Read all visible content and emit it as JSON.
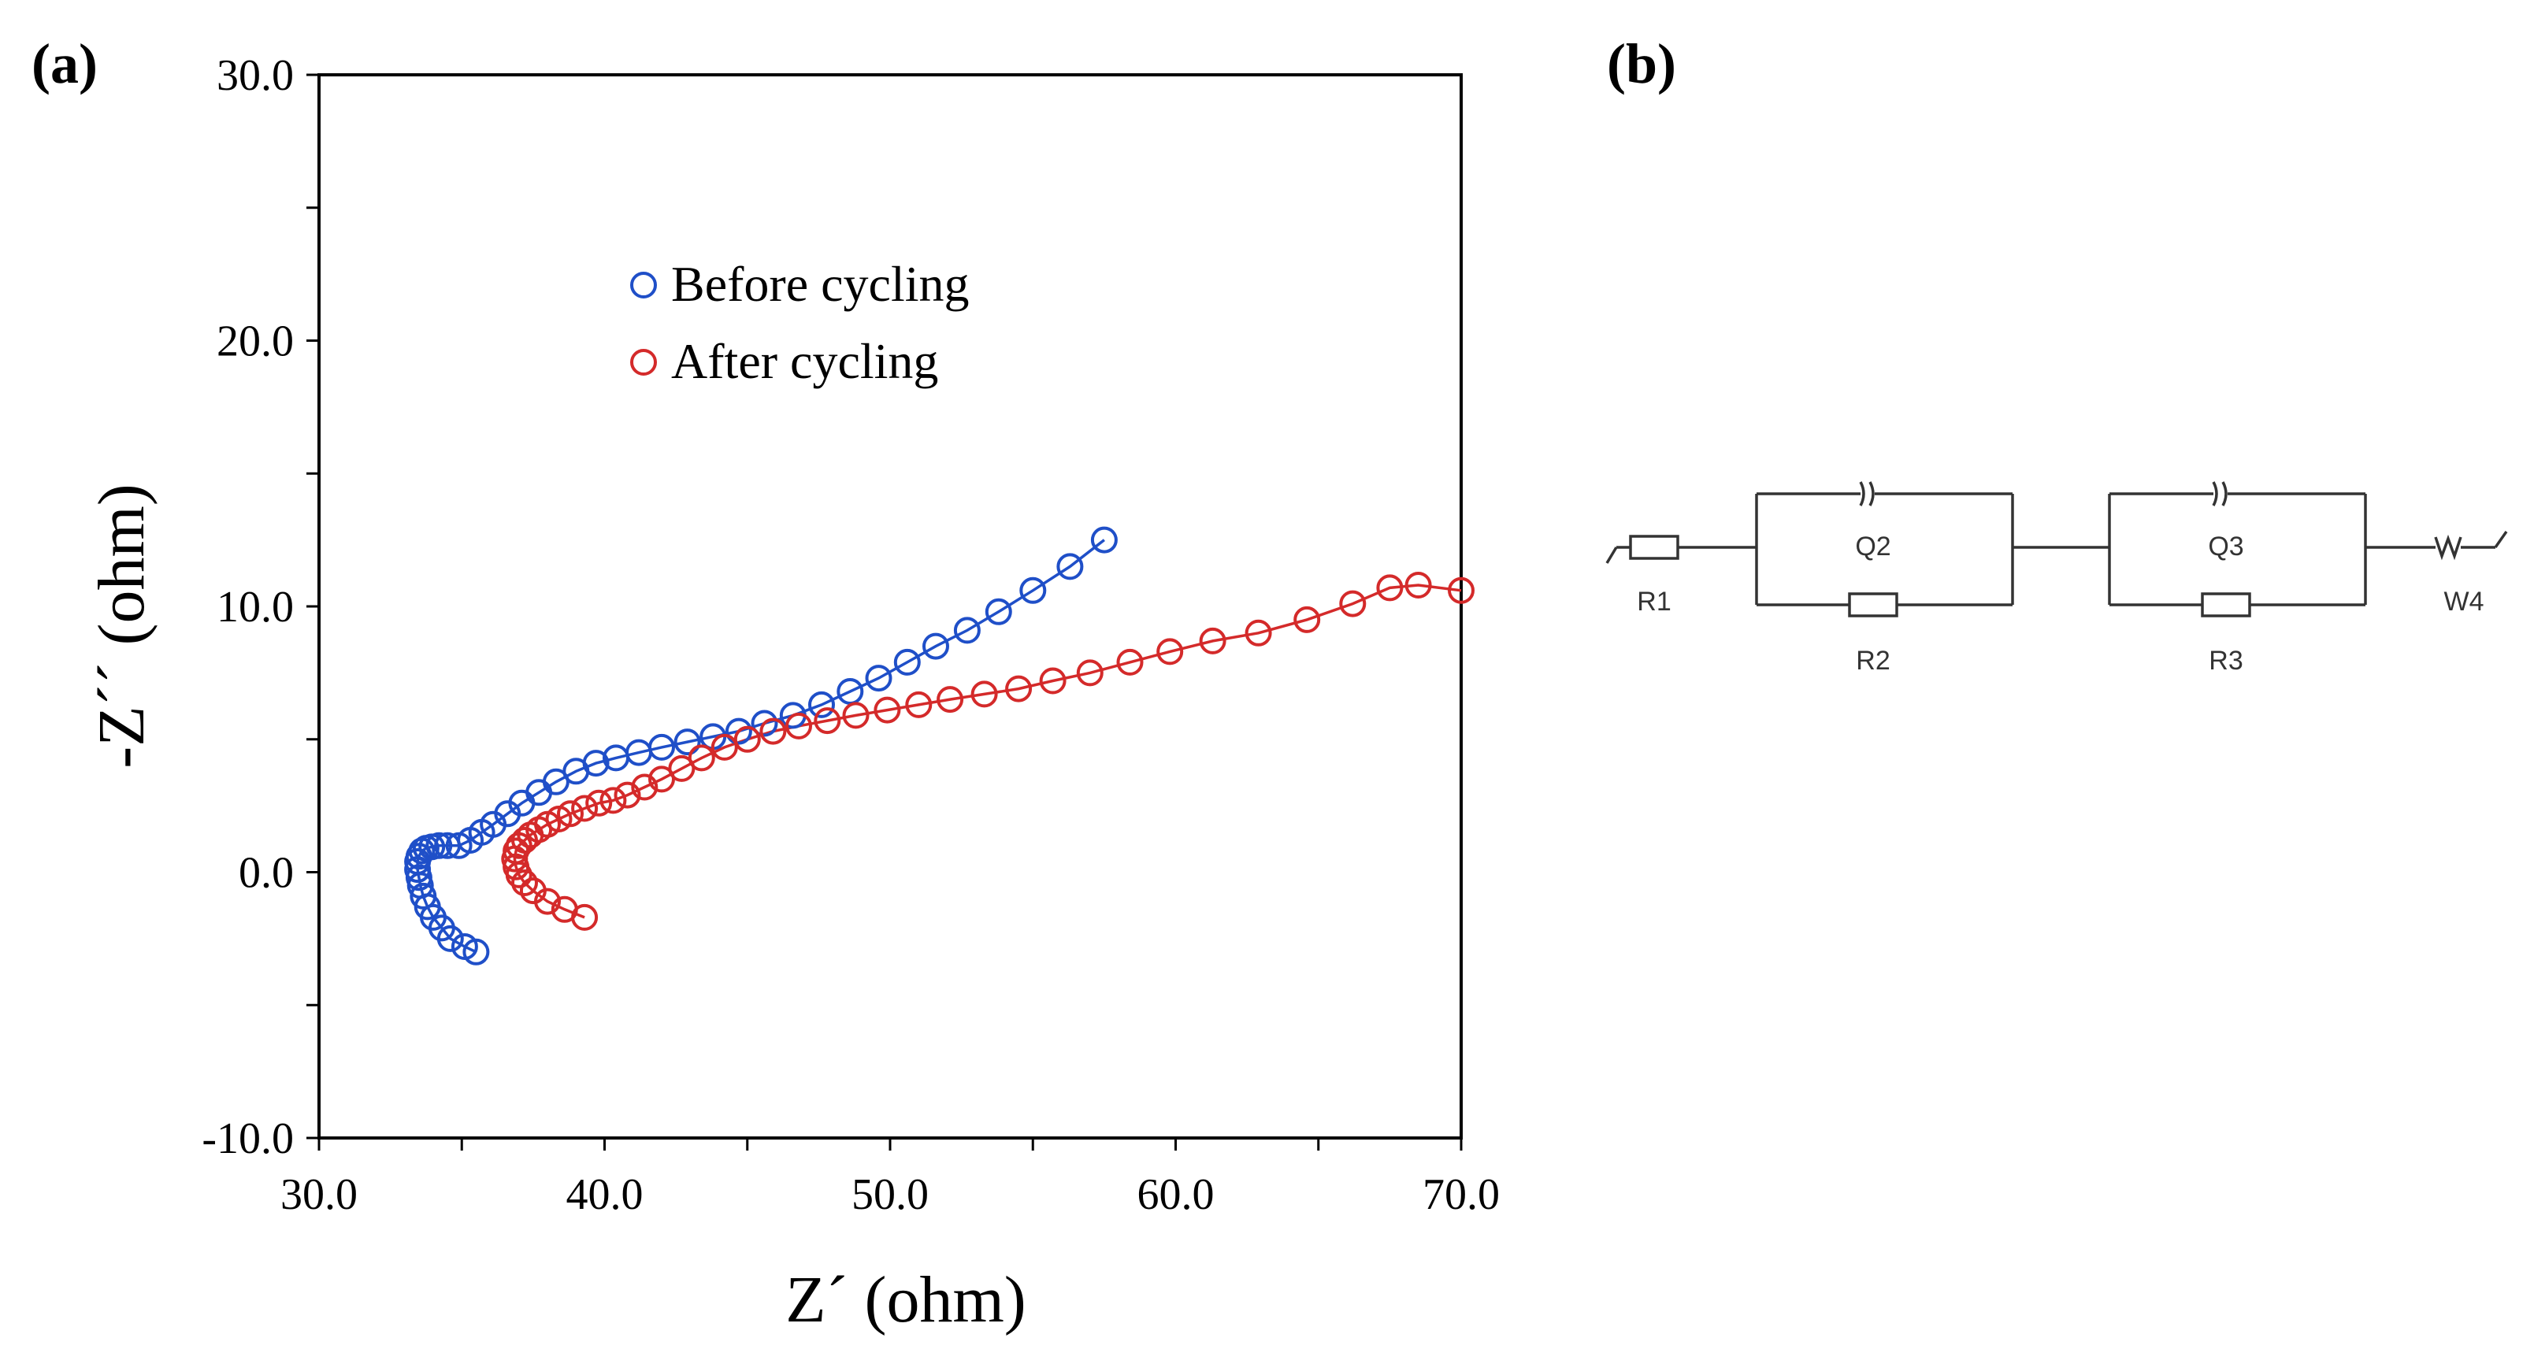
{
  "panels": {
    "a_label": "(a)",
    "b_label": "(b)"
  },
  "chart_data": {
    "type": "scatter",
    "title": "",
    "xlabel": "Z´ (ohm)",
    "ylabel": "-Z´´ (ohm)",
    "xlim": [
      30.0,
      70.0
    ],
    "ylim": [
      -10.0,
      30.0
    ],
    "x_ticks": [
      30.0,
      40.0,
      50.0,
      60.0,
      70.0
    ],
    "y_ticks": [
      -10.0,
      0.0,
      10.0,
      20.0,
      30.0
    ],
    "x_tick_labels": [
      "30.0",
      "40.0",
      "50.0",
      "60.0",
      "70.0"
    ],
    "y_tick_labels": [
      "-10.0",
      "0.0",
      "10.0",
      "20.0",
      "30.0"
    ],
    "grid": false,
    "legend_position": "top-center",
    "series": [
      {
        "name": "Before cycling",
        "color": "#1f4fc8",
        "marker": "open-circle",
        "fit_line": true,
        "x": [
          35.5,
          35.1,
          34.6,
          34.3,
          34.0,
          33.8,
          33.65,
          33.55,
          33.5,
          33.45,
          33.45,
          33.5,
          33.6,
          33.75,
          33.95,
          34.2,
          34.5,
          34.9,
          35.3,
          35.7,
          36.1,
          36.6,
          37.1,
          37.7,
          38.3,
          39.0,
          39.7,
          40.4,
          41.2,
          42.0,
          42.9,
          43.8,
          44.7,
          45.6,
          46.6,
          47.6,
          48.6,
          49.6,
          50.6,
          51.6,
          52.7,
          53.8,
          55.0,
          56.3,
          57.5
        ],
        "y": [
          -3.0,
          -2.8,
          -2.5,
          -2.1,
          -1.7,
          -1.3,
          -0.9,
          -0.5,
          -0.2,
          0.1,
          0.4,
          0.6,
          0.8,
          0.9,
          0.95,
          1.0,
          1.0,
          1.0,
          1.2,
          1.5,
          1.8,
          2.2,
          2.6,
          3.0,
          3.4,
          3.8,
          4.1,
          4.3,
          4.5,
          4.7,
          4.9,
          5.1,
          5.3,
          5.6,
          5.9,
          6.3,
          6.8,
          7.3,
          7.9,
          8.5,
          9.1,
          9.8,
          10.6,
          11.5,
          12.5
        ]
      },
      {
        "name": "After cycling",
        "color": "#d42a2a",
        "marker": "open-circle",
        "fit_line": true,
        "x": [
          39.3,
          38.6,
          38.0,
          37.5,
          37.2,
          37.0,
          36.9,
          36.85,
          36.9,
          37.0,
          37.2,
          37.4,
          37.7,
          38.0,
          38.4,
          38.8,
          39.3,
          39.8,
          40.3,
          40.8,
          41.4,
          42.0,
          42.7,
          43.4,
          44.2,
          45.0,
          45.9,
          46.8,
          47.8,
          48.8,
          49.9,
          51.0,
          52.1,
          53.3,
          54.5,
          55.7,
          57.0,
          58.4,
          59.8,
          61.3,
          62.9,
          64.6,
          66.2,
          67.5,
          68.5,
          70.0
        ],
        "y": [
          -1.7,
          -1.4,
          -1.1,
          -0.7,
          -0.4,
          -0.1,
          0.2,
          0.5,
          0.8,
          1.0,
          1.2,
          1.4,
          1.6,
          1.8,
          2.0,
          2.2,
          2.4,
          2.6,
          2.7,
          2.9,
          3.2,
          3.5,
          3.9,
          4.3,
          4.7,
          5.0,
          5.3,
          5.5,
          5.7,
          5.9,
          6.1,
          6.3,
          6.5,
          6.7,
          6.9,
          7.2,
          7.5,
          7.9,
          8.3,
          8.7,
          9.0,
          9.5,
          10.1,
          10.7,
          10.8,
          10.6
        ]
      }
    ]
  },
  "circuit": {
    "labels": {
      "r1": "R1",
      "q2": "Q2",
      "r2": "R2",
      "q3": "Q3",
      "r3": "R3",
      "w4": "W4"
    }
  }
}
